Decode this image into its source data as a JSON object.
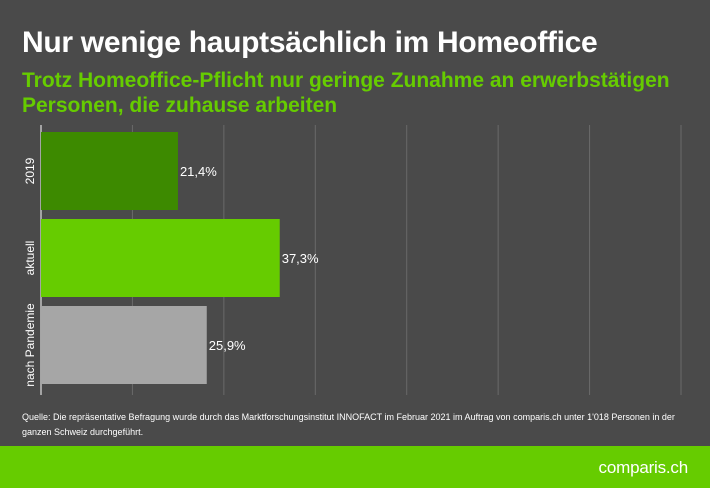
{
  "header": {
    "title": "Nur wenige hauptsächlich im Homeoffice",
    "subtitle": "Trotz Homeoffice-Pflicht nur geringe Zunahme an erwerbstätigen Personen, die zuhause arbeiten"
  },
  "chart_data": {
    "type": "bar",
    "orientation": "horizontal",
    "categories": [
      "2019",
      "aktuell",
      "nach Pandemie"
    ],
    "values": [
      21.4,
      37.3,
      25.9
    ],
    "value_labels": [
      "21,4%",
      "37,3%",
      "25,9%"
    ],
    "colors": [
      "#3d8a00",
      "#66cc00",
      "#a6a6a6"
    ],
    "xlim": [
      0,
      100
    ],
    "grid": true
  },
  "source": "Quelle: Die repräsentative Befragung wurde durch das Marktforschungsinstitut INNOFACT im Februar 2021 im Auftrag von comparis.ch unter 1'018 Personen in der ganzen Schweiz durchgeführt.",
  "brand": "comparis.ch",
  "colors": {
    "background": "#4a4a4a",
    "accent": "#66cc00",
    "grid": "#6a6a6a"
  }
}
